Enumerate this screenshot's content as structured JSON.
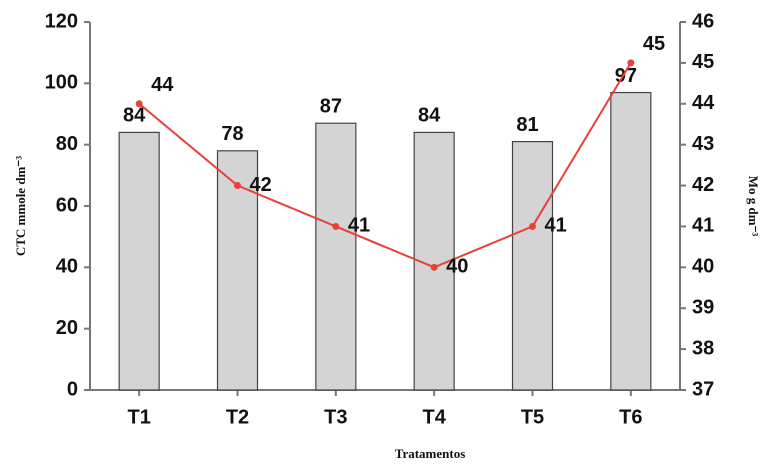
{
  "chart_data": {
    "type": "bar+line",
    "categories": [
      "T1",
      "T2",
      "T3",
      "T4",
      "T5",
      "T6"
    ],
    "x_label": "Tratamentos",
    "y_label": "CTC mmole dm⁻³",
    "y2_label": "Mo g dm⁻³",
    "ylim": [
      0,
      120
    ],
    "yticks": [
      0,
      20,
      40,
      60,
      80,
      100,
      120
    ],
    "y2lim": [
      37,
      46
    ],
    "y2ticks": [
      37,
      38,
      39,
      40,
      41,
      42,
      43,
      44,
      45,
      46
    ],
    "series": [
      {
        "type": "bar",
        "color": "#d4d4d4",
        "values": [
          84,
          78,
          87,
          84,
          81,
          97
        ]
      },
      {
        "type": "line",
        "axis": "y2",
        "color": "#e8413a",
        "values": [
          44,
          42,
          41,
          40,
          41,
          45
        ]
      }
    ]
  }
}
